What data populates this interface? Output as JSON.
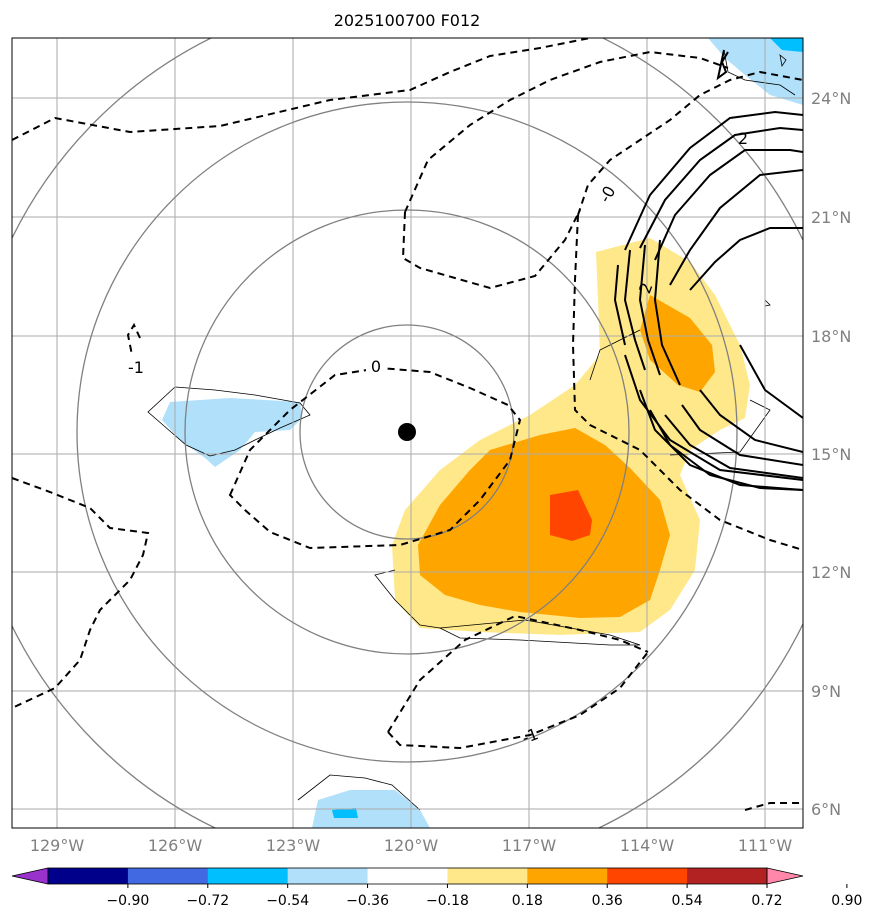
{
  "title": "2025100700 F012",
  "lon_labels": [
    "129°W",
    "126°W",
    "123°W",
    "120°W",
    "117°W",
    "114°W",
    "111°W"
  ],
  "lat_labels": [
    "24°N",
    "21°N",
    "18°N",
    "15°N",
    "12°N",
    "9°N",
    "6°N"
  ],
  "contour_labels": {
    "zero_center": "0",
    "minus_one_west": "-1",
    "zero_northeast": "-0",
    "two_upper": "2",
    "two_mid": "2",
    "minus_one_south": "-1"
  },
  "colorbar": {
    "ticks": [
      "−0.90",
      "−0.72",
      "−0.54",
      "−0.36",
      "−0.18",
      "0.18",
      "0.36",
      "0.54",
      "0.72",
      "0.90"
    ],
    "colors": [
      "#9932cc",
      "#00008b",
      "#4169e1",
      "#00bfff",
      "#b0e0fa",
      "#ffffff",
      "#ffe88a",
      "#ffa500",
      "#ff4500",
      "#b22222",
      "#ff88aa"
    ]
  },
  "storm_center": {
    "lon": "120°W",
    "lat": "15.5°N"
  }
}
